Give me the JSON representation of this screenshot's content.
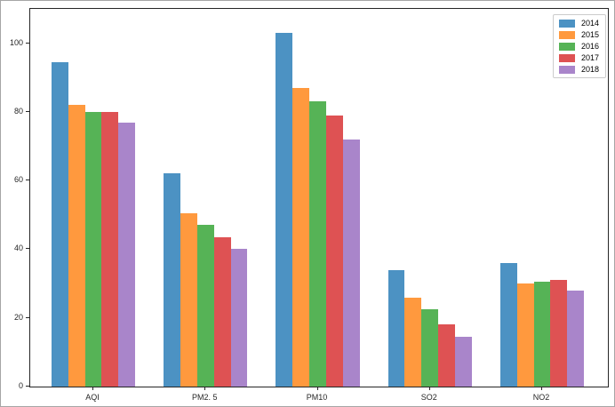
{
  "chart_data": {
    "type": "bar",
    "title": "",
    "xlabel": "",
    "ylabel": "",
    "categories": [
      "AQI",
      "PM2. 5",
      "PM10",
      "SO2",
      "NO2"
    ],
    "series": [
      {
        "name": "2014",
        "color": "#4C92C3",
        "values": [
          94.5,
          62,
          103,
          34,
          36
        ]
      },
      {
        "name": "2015",
        "color": "#FF993E",
        "values": [
          82,
          50.5,
          87,
          26,
          30
        ]
      },
      {
        "name": "2016",
        "color": "#56B356",
        "values": [
          80,
          47,
          83,
          22.5,
          30.5
        ]
      },
      {
        "name": "2017",
        "color": "#DE5253",
        "values": [
          80,
          43.5,
          79,
          18,
          31
        ]
      },
      {
        "name": "2018",
        "color": "#A985CA",
        "values": [
          77,
          40,
          72,
          14.5,
          28
        ]
      }
    ],
    "y_ticks": [
      0,
      20,
      40,
      60,
      80,
      100
    ],
    "ylim": [
      0,
      110
    ],
    "grid": false,
    "legend_position": "upper right",
    "axis_color": "#262626",
    "background_color": "#ffffff"
  }
}
